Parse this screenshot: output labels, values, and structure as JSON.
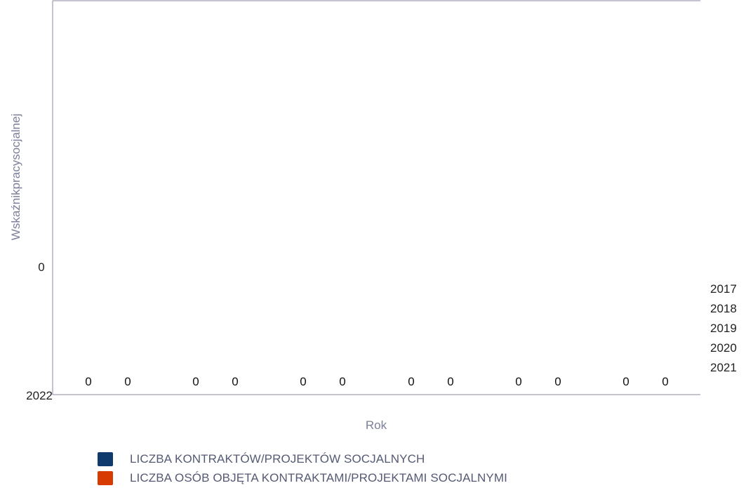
{
  "chart_data": {
    "type": "bar",
    "title": "",
    "xlabel": "Rok",
    "ylabel": "Wskaźnikpracysocjalnej",
    "ytick_labels": [
      "0",
      "2022"
    ],
    "right_labels": [
      "2017",
      "2018",
      "2019",
      "2020",
      "2021"
    ],
    "categories": [
      "2017",
      "2018",
      "2019",
      "2020",
      "2021",
      "2022"
    ],
    "series": [
      {
        "name": "LICZBA KONTRAKTÓW/PROJEKTÓW SOCJALNYCH",
        "color": "#0e3a6e",
        "values": [
          0,
          0,
          0,
          0,
          0,
          0
        ]
      },
      {
        "name": "LICZBA OSÓB OBJĘTA KONTRAKTAMI/PROJEKTAMI SOCJALNYMI",
        "color": "#d83b01",
        "values": [
          0,
          0,
          0,
          0,
          0,
          0
        ]
      }
    ],
    "data_labels": [
      "0",
      "0",
      "0",
      "0",
      "0",
      "0",
      "0",
      "0",
      "0",
      "0",
      "0",
      "0"
    ],
    "legend_position": "bottom-left",
    "grid": false
  }
}
